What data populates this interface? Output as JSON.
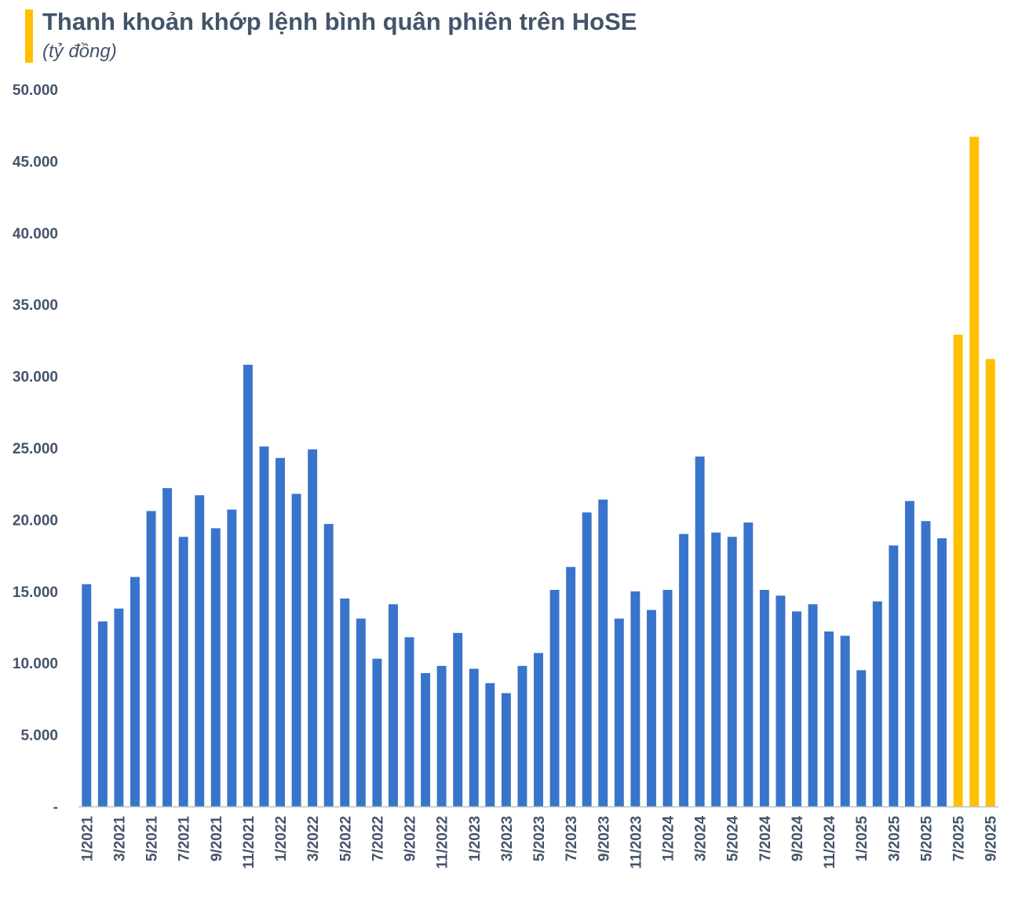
{
  "header": {
    "title": "Thanh khoản khớp lệnh bình quân phiên trên HoSE",
    "subtitle": "(tỷ đồng)"
  },
  "colors": {
    "normal": "#3874cb",
    "highlight": "#ffc000",
    "axis": "#bfbfbf",
    "text": "#44546a"
  },
  "chart_data": {
    "type": "bar",
    "title": "Thanh khoản khớp lệnh bình quân phiên trên HoSE",
    "ylabel": "(tỷ đồng)",
    "ylim": [
      0,
      50000
    ],
    "yticks": [
      {
        "value": 0,
        "label": "-"
      },
      {
        "value": 5000,
        "label": "5.000"
      },
      {
        "value": 10000,
        "label": "10.000"
      },
      {
        "value": 15000,
        "label": "15.000"
      },
      {
        "value": 20000,
        "label": "20.000"
      },
      {
        "value": 25000,
        "label": "25.000"
      },
      {
        "value": 30000,
        "label": "30.000"
      },
      {
        "value": 35000,
        "label": "35.000"
      },
      {
        "value": 40000,
        "label": "40.000"
      },
      {
        "value": 45000,
        "label": "45.000"
      },
      {
        "value": 50000,
        "label": "50.000"
      }
    ],
    "categories": [
      "1/2021",
      "2/2021",
      "3/2021",
      "4/2021",
      "5/2021",
      "6/2021",
      "7/2021",
      "8/2021",
      "9/2021",
      "10/2021",
      "11/2021",
      "12/2021",
      "1/2022",
      "2/2022",
      "3/2022",
      "4/2022",
      "5/2022",
      "6/2022",
      "7/2022",
      "8/2022",
      "9/2022",
      "10/2022",
      "11/2022",
      "12/2022",
      "1/2023",
      "2/2023",
      "3/2023",
      "4/2023",
      "5/2023",
      "6/2023",
      "7/2023",
      "8/2023",
      "9/2023",
      "10/2023",
      "11/2023",
      "12/2023",
      "1/2024",
      "2/2024",
      "3/2024",
      "4/2024",
      "5/2024",
      "6/2024",
      "7/2024",
      "8/2024",
      "9/2024",
      "10/2024",
      "11/2024",
      "12/2024",
      "1/2025",
      "2/2025",
      "3/2025",
      "4/2025",
      "5/2025",
      "6/2025",
      "7/2025",
      "8/2025",
      "9/2025"
    ],
    "tick_labels": [
      "1/2021",
      "3/2021",
      "5/2021",
      "7/2021",
      "9/2021",
      "11/2021",
      "1/2022",
      "3/2022",
      "5/2022",
      "7/2022",
      "9/2022",
      "11/2022",
      "1/2023",
      "3/2023",
      "5/2023",
      "7/2023",
      "9/2023",
      "11/2023",
      "1/2024",
      "3/2024",
      "5/2024",
      "7/2024",
      "9/2024",
      "11/2024",
      "1/2025",
      "3/2025",
      "5/2025",
      "7/2025",
      "9/2025"
    ],
    "values": [
      15500,
      12900,
      13800,
      16000,
      20600,
      22200,
      18800,
      21700,
      19400,
      20700,
      30800,
      25100,
      24300,
      21800,
      24900,
      19700,
      14500,
      13100,
      10300,
      14100,
      11800,
      9300,
      9800,
      12100,
      9600,
      8600,
      7900,
      9800,
      10700,
      15100,
      16700,
      20500,
      21400,
      13100,
      15000,
      13700,
      15100,
      19000,
      24400,
      19100,
      18800,
      19800,
      15100,
      14700,
      13600,
      14100,
      12200,
      11900,
      9500,
      14300,
      18200,
      21300,
      19900,
      18700,
      32900,
      46700,
      31200
    ],
    "highlight_from_index": 54
  }
}
